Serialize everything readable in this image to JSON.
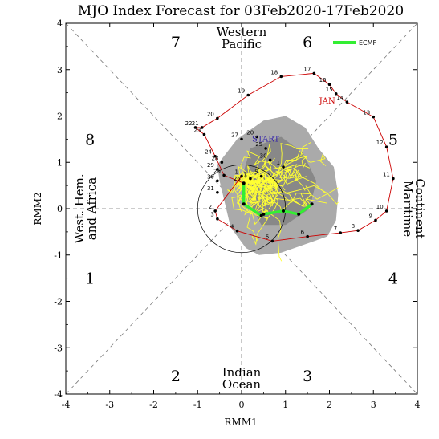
{
  "chart_data": {
    "type": "line",
    "title": "MJO Index Forecast for 03Feb2020-17Feb2020",
    "xlabel": "RMM1",
    "ylabel": "RMM2",
    "xlim": [
      -4,
      4
    ],
    "ylim": [
      -4,
      4
    ],
    "xticks": [
      "-4",
      "-3",
      "-2",
      "-1",
      "0",
      "1",
      "2",
      "3",
      "4"
    ],
    "yticks": [
      "-4",
      "-3",
      "-2",
      "-1",
      "0",
      "1",
      "2",
      "3",
      "4"
    ],
    "phase_labels": [
      {
        "text": "1",
        "x": -3.45,
        "y": -1.5
      },
      {
        "text": "2",
        "x": -1.5,
        "y": -3.6
      },
      {
        "text": "3",
        "x": 1.5,
        "y": -3.6
      },
      {
        "text": "4",
        "x": 3.45,
        "y": -1.5
      },
      {
        "text": "5",
        "x": 3.45,
        "y": 1.5
      },
      {
        "text": "6",
        "x": 1.5,
        "y": 3.6
      },
      {
        "text": "7",
        "x": -1.5,
        "y": 3.6
      },
      {
        "text": "8",
        "x": -3.45,
        "y": 1.5
      }
    ],
    "regions": {
      "top": [
        "Western",
        "Pacific"
      ],
      "bottom": [
        "Indian",
        "Ocean"
      ],
      "left": [
        "West. Hem.",
        "and Africa"
      ],
      "right": [
        "Maritime",
        "Continent"
      ]
    },
    "month_labels": [
      {
        "text": "JAN",
        "x": 1.95,
        "y": 2.27,
        "color": "#cc0000"
      },
      {
        "text": "START",
        "x": 0.55,
        "y": 1.45,
        "color": "#3322aa"
      }
    ],
    "observed": {
      "color": "#cc0000",
      "points": [
        {
          "day": "1",
          "x": 0.0,
          "y": 0.7
        },
        {
          "day": "2",
          "x": -0.6,
          "y": -0.05
        },
        {
          "day": "3",
          "x": -0.55,
          "y": -0.22
        },
        {
          "day": "4",
          "x": -0.1,
          "y": -0.48
        },
        {
          "day": "5",
          "x": 0.7,
          "y": -0.7
        },
        {
          "day": "6",
          "x": 1.5,
          "y": -0.6
        },
        {
          "day": "7",
          "x": 2.25,
          "y": -0.52
        },
        {
          "day": "8",
          "x": 2.65,
          "y": -0.47
        },
        {
          "day": "9",
          "x": 3.05,
          "y": -0.25
        },
        {
          "day": "10",
          "x": 3.3,
          "y": -0.05
        },
        {
          "day": "11",
          "x": 3.45,
          "y": 0.65
        },
        {
          "day": "12",
          "x": 3.3,
          "y": 1.33
        },
        {
          "day": "13",
          "x": 3.0,
          "y": 1.98
        },
        {
          "day": "14",
          "x": 2.4,
          "y": 2.3
        },
        {
          "day": "15",
          "x": 2.15,
          "y": 2.48
        },
        {
          "day": "16",
          "x": 2.0,
          "y": 2.68
        },
        {
          "day": "17",
          "x": 1.65,
          "y": 2.92
        },
        {
          "day": "18",
          "x": 0.9,
          "y": 2.85
        },
        {
          "day": "19",
          "x": 0.15,
          "y": 2.45
        },
        {
          "day": "20",
          "x": -0.55,
          "y": 1.95
        },
        {
          "day": "21",
          "x": -0.9,
          "y": 1.75
        },
        {
          "day": "22",
          "x": -1.05,
          "y": 1.75
        },
        {
          "day": "23",
          "x": -0.85,
          "y": 1.6
        },
        {
          "day": "24",
          "x": -0.6,
          "y": 1.13
        },
        {
          "day": "25",
          "x": -0.4,
          "y": 0.72
        },
        {
          "day": "26",
          "x": 0.05,
          "y": 0.55
        },
        {
          "day": "27",
          "x": 0.0,
          "y": 1.5
        },
        {
          "day": "28",
          "x": -0.45,
          "y": 1.0
        },
        {
          "day": "29",
          "x": -0.55,
          "y": 0.85
        },
        {
          "day": "30",
          "x": -0.55,
          "y": 0.6
        },
        {
          "day": "31",
          "x": -0.55,
          "y": 0.35
        },
        {
          "day": "20",
          "x": 0.35,
          "y": 1.55
        },
        {
          "day": "25",
          "x": 0.55,
          "y": 1.3
        },
        {
          "day": "30",
          "x": 0.65,
          "y": 1.05
        },
        {
          "day": "1",
          "x": 0.95,
          "y": 0.9
        },
        {
          "day": "5",
          "x": 0.45,
          "y": 0.7
        },
        {
          "day": "1",
          "x": 0.2,
          "y": 0.65
        }
      ]
    },
    "forecast_ecmf": {
      "name": "ECMF",
      "color": "#33ee33",
      "points": [
        {
          "x": 0.05,
          "y": 0.55
        },
        {
          "x": 0.05,
          "y": 0.1
        },
        {
          "x": 0.45,
          "y": -0.15
        },
        {
          "x": 0.5,
          "y": -0.12
        },
        {
          "x": 0.95,
          "y": -0.05
        },
        {
          "x": 1.3,
          "y": -0.12
        },
        {
          "x": 1.6,
          "y": 0.1
        }
      ]
    },
    "ensemble": {
      "color": "#ffff33",
      "shade_color": "#aaaaaa"
    },
    "grid": false,
    "legend_position": "top-right"
  }
}
